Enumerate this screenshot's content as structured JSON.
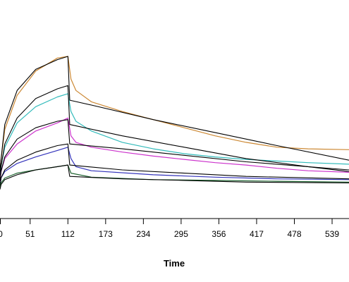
{
  "chart_data": {
    "type": "line",
    "title": "",
    "xlabel": "Time",
    "ylabel": "",
    "xlim": [
      0,
      568
    ],
    "ylim": [
      0,
      1
    ],
    "x_ticks": [
      0,
      51,
      112,
      173,
      234,
      295,
      356,
      417,
      478,
      539
    ],
    "x_tick_labels": [
      "0",
      "51",
      "112",
      "173",
      "234",
      "295",
      "356",
      "417",
      "478",
      "539"
    ],
    "grid": false,
    "legend": "none",
    "series": [
      {
        "color": "#cc8833",
        "kind": "measured",
        "values": [
          [
            0,
            0.26
          ],
          [
            3,
            0.33
          ],
          [
            10,
            0.55
          ],
          [
            30,
            0.76
          ],
          [
            60,
            0.91
          ],
          [
            95,
            0.99
          ],
          [
            112,
            1.0
          ],
          [
            117,
            0.86
          ],
          [
            125,
            0.79
          ],
          [
            150,
            0.72
          ],
          [
            200,
            0.66
          ],
          [
            250,
            0.61
          ],
          [
            300,
            0.56
          ],
          [
            350,
            0.51
          ],
          [
            400,
            0.47
          ],
          [
            450,
            0.44
          ],
          [
            500,
            0.43
          ],
          [
            568,
            0.425
          ]
        ]
      },
      {
        "color": "#000000",
        "kind": "fitted",
        "values": [
          [
            0,
            0.25
          ],
          [
            3,
            0.33
          ],
          [
            10,
            0.58
          ],
          [
            30,
            0.79
          ],
          [
            60,
            0.92
          ],
          [
            95,
            0.98
          ],
          [
            112,
            1.0
          ],
          [
            115,
            0.73
          ],
          [
            150,
            0.7
          ],
          [
            250,
            0.61
          ],
          [
            350,
            0.53
          ],
          [
            450,
            0.45
          ],
          [
            568,
            0.36
          ]
        ]
      },
      {
        "color": "#33bbbb",
        "kind": "measured",
        "values": [
          [
            0,
            0.24
          ],
          [
            4,
            0.32
          ],
          [
            10,
            0.44
          ],
          [
            30,
            0.59
          ],
          [
            60,
            0.69
          ],
          [
            95,
            0.75
          ],
          [
            112,
            0.77
          ],
          [
            117,
            0.66
          ],
          [
            125,
            0.6
          ],
          [
            150,
            0.54
          ],
          [
            200,
            0.47
          ],
          [
            250,
            0.43
          ],
          [
            300,
            0.4
          ],
          [
            350,
            0.38
          ],
          [
            400,
            0.365
          ],
          [
            450,
            0.355
          ],
          [
            500,
            0.345
          ],
          [
            568,
            0.335
          ]
        ]
      },
      {
        "color": "#000000",
        "kind": "fitted",
        "values": [
          [
            0,
            0.24
          ],
          [
            4,
            0.32
          ],
          [
            10,
            0.46
          ],
          [
            30,
            0.62
          ],
          [
            60,
            0.74
          ],
          [
            95,
            0.8
          ],
          [
            112,
            0.82
          ],
          [
            115,
            0.58
          ],
          [
            200,
            0.51
          ],
          [
            300,
            0.44
          ],
          [
            400,
            0.37
          ],
          [
            500,
            0.32
          ],
          [
            568,
            0.29
          ]
        ]
      },
      {
        "color": "#cc33cc",
        "kind": "measured",
        "values": [
          [
            0,
            0.23
          ],
          [
            4,
            0.29
          ],
          [
            10,
            0.37
          ],
          [
            30,
            0.46
          ],
          [
            60,
            0.54
          ],
          [
            95,
            0.59
          ],
          [
            112,
            0.62
          ],
          [
            117,
            0.51
          ],
          [
            125,
            0.47
          ],
          [
            150,
            0.44
          ],
          [
            200,
            0.41
          ],
          [
            250,
            0.385
          ],
          [
            300,
            0.365
          ],
          [
            350,
            0.345
          ],
          [
            400,
            0.33
          ],
          [
            450,
            0.31
          ],
          [
            500,
            0.295
          ],
          [
            568,
            0.285
          ]
        ]
      },
      {
        "color": "#000000",
        "kind": "fitted",
        "values": [
          [
            0,
            0.23
          ],
          [
            4,
            0.29
          ],
          [
            10,
            0.38
          ],
          [
            30,
            0.49
          ],
          [
            60,
            0.56
          ],
          [
            95,
            0.6
          ],
          [
            112,
            0.61
          ],
          [
            115,
            0.46
          ],
          [
            200,
            0.43
          ],
          [
            300,
            0.39
          ],
          [
            400,
            0.35
          ],
          [
            500,
            0.32
          ],
          [
            568,
            0.3
          ]
        ]
      },
      {
        "color": "#3333bb",
        "kind": "measured",
        "values": [
          [
            0,
            0.2
          ],
          [
            4,
            0.25
          ],
          [
            10,
            0.29
          ],
          [
            30,
            0.34
          ],
          [
            60,
            0.38
          ],
          [
            95,
            0.42
          ],
          [
            112,
            0.44
          ],
          [
            117,
            0.37
          ],
          [
            125,
            0.32
          ],
          [
            150,
            0.295
          ],
          [
            250,
            0.27
          ],
          [
            350,
            0.255
          ],
          [
            450,
            0.245
          ],
          [
            568,
            0.24
          ]
        ]
      },
      {
        "color": "#000000",
        "kind": "fitted",
        "values": [
          [
            0,
            0.2
          ],
          [
            4,
            0.25
          ],
          [
            10,
            0.3
          ],
          [
            30,
            0.36
          ],
          [
            60,
            0.41
          ],
          [
            95,
            0.45
          ],
          [
            112,
            0.46
          ],
          [
            115,
            0.33
          ],
          [
            200,
            0.3
          ],
          [
            300,
            0.28
          ],
          [
            400,
            0.26
          ],
          [
            568,
            0.245
          ]
        ]
      },
      {
        "color": "#226633",
        "kind": "measured",
        "values": [
          [
            0,
            0.19
          ],
          [
            4,
            0.22
          ],
          [
            10,
            0.25
          ],
          [
            30,
            0.28
          ],
          [
            60,
            0.3
          ],
          [
            95,
            0.32
          ],
          [
            112,
            0.33
          ],
          [
            117,
            0.28
          ],
          [
            150,
            0.255
          ],
          [
            250,
            0.24
          ],
          [
            350,
            0.235
          ],
          [
            450,
            0.23
          ],
          [
            568,
            0.225
          ]
        ]
      },
      {
        "color": "#000000",
        "kind": "fitted",
        "values": [
          [
            0,
            0.18
          ],
          [
            4,
            0.21
          ],
          [
            10,
            0.24
          ],
          [
            30,
            0.27
          ],
          [
            60,
            0.3
          ],
          [
            95,
            0.32
          ],
          [
            112,
            0.33
          ],
          [
            115,
            0.26
          ],
          [
            200,
            0.245
          ],
          [
            300,
            0.235
          ],
          [
            400,
            0.225
          ],
          [
            568,
            0.22
          ]
        ]
      }
    ]
  }
}
